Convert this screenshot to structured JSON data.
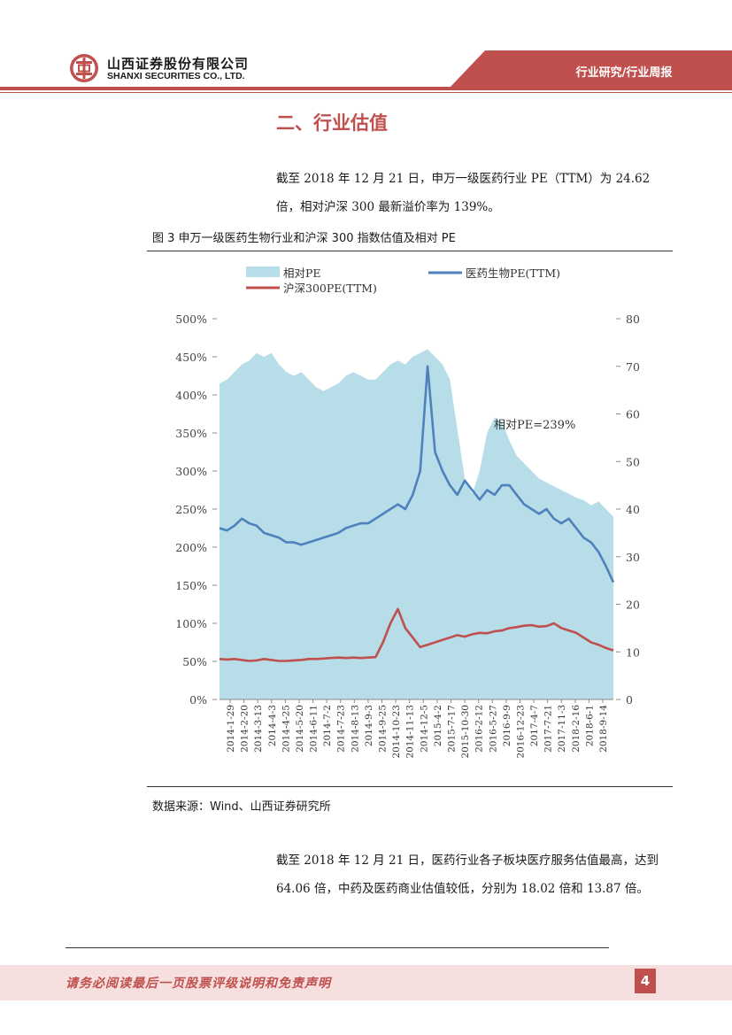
{
  "header": {
    "company_cn": "山西证券股份有限公司",
    "company_en": "SHANXI SECURITIES CO., LTD.",
    "section_label": "行业研究/行业周报"
  },
  "section_title": "二、行业估值",
  "paragraphs": [
    "截至 2018 年 12 月 21 日，申万一级医药行业 PE（TTM）为 24.62 倍，相对沪深 300 最新溢价率为 139%。",
    "截至 2018 年 12 月 21 日，医药行业各子板块医疗服务估值最高，达到 64.06 倍，中药及医药商业估值较低，分别为 18.02 倍和 13.87 倍。"
  ],
  "figure_caption": "图 3  申万一级医药生物行业和沪深 300 指数估值及相对 PE",
  "source": "数据来源：Wind、山西证券研究所",
  "footer": {
    "disclaimer": "请务必阅读最后一页股票评级说明和免责声明",
    "page": "4"
  },
  "colors": {
    "brand_red": "#c0504d",
    "relative_pe_fill": "#b7dde8",
    "pharma_line": "#4f81bd",
    "hs300_line": "#c0504d"
  },
  "chart_data": {
    "type": "area",
    "annotation": "相对PE=239%",
    "legend": [
      "相对PE",
      "医药生物PE(TTM)",
      "沪深300PE(TTM)"
    ],
    "legend_position": "top-left",
    "y_left": {
      "range": [
        0,
        500
      ],
      "ticks": [
        "0%",
        "50%",
        "100%",
        "150%",
        "200%",
        "250%",
        "300%",
        "350%",
        "400%",
        "450%",
        "500%"
      ]
    },
    "y_right": {
      "range": [
        0,
        80
      ],
      "ticks": [
        "0",
        "10",
        "20",
        "30",
        "40",
        "50",
        "60",
        "70",
        "80"
      ]
    },
    "x_ticks": [
      "2014-1-29",
      "2014-2-20",
      "2014-3-13",
      "2014-4-3",
      "2014-4-25",
      "2014-5-20",
      "2014-6-11",
      "2014-7-2",
      "2014-7-23",
      "2014-8-13",
      "2014-9-3",
      "2014-9-25",
      "2014-10-23",
      "2014-11-13",
      "2014-12-5",
      "2015-4-2",
      "2015-7-17",
      "2015-10-30",
      "2016-2-12",
      "2016-5-27",
      "2016-9-9",
      "2016-12-23",
      "2017-4-7",
      "2017-7-21",
      "2017-11-3",
      "2018-2-16",
      "2018-6-1",
      "2018-9-14"
    ],
    "series": [
      {
        "name": "相对PE",
        "axis": "left",
        "style": "area",
        "values": [
          415,
          420,
          430,
          440,
          445,
          455,
          450,
          455,
          440,
          430,
          425,
          430,
          420,
          410,
          405,
          410,
          415,
          425,
          430,
          425,
          420,
          420,
          430,
          440,
          445,
          440,
          450,
          455,
          460,
          450,
          440,
          420,
          355,
          290,
          270,
          300,
          350,
          370,
          365,
          340,
          320,
          310,
          300,
          290,
          285,
          280,
          275,
          270,
          265,
          262,
          255,
          260,
          250,
          240
        ]
      },
      {
        "name": "医药生物PE(TTM)",
        "axis": "right",
        "style": "line",
        "values": [
          36,
          35.5,
          36.5,
          38,
          37,
          36.5,
          35,
          34.5,
          34,
          33,
          33,
          32.5,
          33,
          33.5,
          34,
          34.5,
          35,
          36,
          36.5,
          37,
          37,
          38,
          39,
          40,
          41,
          40,
          43,
          48,
          70,
          52,
          48,
          45,
          43,
          46,
          44,
          42,
          44,
          43,
          45,
          45,
          43,
          41,
          40,
          39,
          40,
          38,
          37,
          38,
          36,
          34,
          33,
          31,
          28,
          24.62
        ]
      },
      {
        "name": "沪深300PE(TTM)",
        "axis": "right",
        "style": "line",
        "values": [
          8.5,
          8.4,
          8.5,
          8.3,
          8.1,
          8.2,
          8.5,
          8.3,
          8.1,
          8.1,
          8.2,
          8.3,
          8.5,
          8.5,
          8.6,
          8.7,
          8.8,
          8.7,
          8.8,
          8.7,
          8.8,
          8.9,
          12,
          16,
          19,
          15,
          13,
          11,
          11.5,
          12,
          12.5,
          13,
          13.5,
          13.2,
          13.7,
          14,
          13.9,
          14.3,
          14.5,
          15,
          15.2,
          15.5,
          15.6,
          15.3,
          15.4,
          16,
          15,
          14.5,
          14,
          13,
          12,
          11.5,
          10.8,
          10.3
        ]
      }
    ]
  }
}
